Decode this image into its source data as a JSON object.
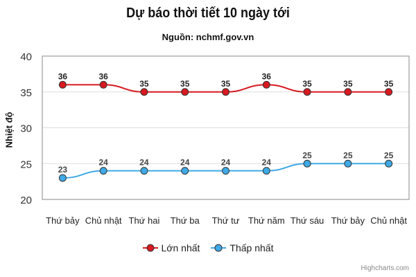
{
  "chart_data": {
    "type": "line",
    "title": "Dự báo thời tiết 10 ngày tới",
    "subtitle": "Nguồn: nchmf.gov.vn",
    "xlabel": "",
    "ylabel": "Nhiệt độ",
    "ylim": [
      20,
      40
    ],
    "yticks": [
      "20",
      "25",
      "30",
      "35",
      "40"
    ],
    "grid": true,
    "legend_placement": "bottom-center",
    "categories": [
      "Thứ bảy",
      "Chủ nhật",
      "Thứ hai",
      "Thứ ba",
      "Thứ tư",
      "Thứ năm",
      "Thứ sáu",
      "Thứ bảy",
      "Chủ nhật"
    ],
    "series": [
      {
        "name": "Lớn nhất",
        "color": "#d71920",
        "values": [
          36,
          36,
          35,
          35,
          35,
          36,
          35,
          35,
          35
        ]
      },
      {
        "name": "Thấp nhất",
        "color": "#3fa9e6",
        "values": [
          23,
          24,
          24,
          24,
          24,
          24,
          25,
          25,
          25
        ]
      }
    ],
    "credit": "Highcharts.com"
  }
}
